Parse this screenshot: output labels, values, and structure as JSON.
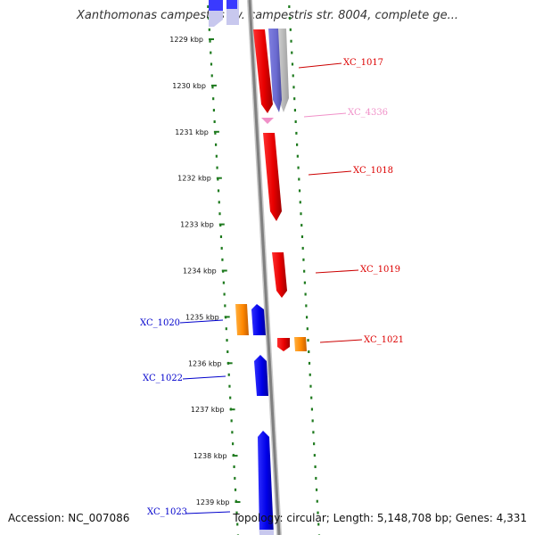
{
  "title": "Xanthomonas campestris pv. campestris str. 8004, complete ge...",
  "footer": {
    "accession": "Accession: NC_007086",
    "summary": "Topology: circular; Length: 5,148,708 bp; Genes: 4,331"
  },
  "colors": {
    "gene_red": "#ee0000",
    "gene_blue": "#0000ee",
    "gene_orange": "#ff8c00",
    "gene_pink": "#f090c8",
    "dots": "#1e7a1e",
    "backbone": "#888888"
  },
  "scale": {
    "unit": "kbp",
    "ticks": [
      {
        "kbp": 1229,
        "label": "1229 kbp"
      },
      {
        "kbp": 1230,
        "label": "1230 kbp"
      },
      {
        "kbp": 1231,
        "label": "1231 kbp"
      },
      {
        "kbp": 1232,
        "label": "1232 kbp"
      },
      {
        "kbp": 1233,
        "label": "1233 kbp"
      },
      {
        "kbp": 1234,
        "label": "1234 kbp"
      },
      {
        "kbp": 1235,
        "label": "1235 kbp"
      },
      {
        "kbp": 1236,
        "label": "1236 kbp"
      },
      {
        "kbp": 1237,
        "label": "1237 kbp"
      },
      {
        "kbp": 1238,
        "label": "1238 kbp"
      },
      {
        "kbp": 1239,
        "label": "1239 kbp"
      }
    ]
  },
  "gene_labels": [
    {
      "id": "XC_1017",
      "text": "XC_1017",
      "color": "#dd0000"
    },
    {
      "id": "XC_4336",
      "text": "XC_4336",
      "color": "#f090c8"
    },
    {
      "id": "XC_1018",
      "text": "XC_1018",
      "color": "#dd0000"
    },
    {
      "id": "XC_1019",
      "text": "XC_1019",
      "color": "#dd0000"
    },
    {
      "id": "XC_1020",
      "text": "XC_1020",
      "color": "#0000cc"
    },
    {
      "id": "XC_1021",
      "text": "XC_1021",
      "color": "#dd0000"
    },
    {
      "id": "XC_1022",
      "text": "XC_1022",
      "color": "#0000cc"
    },
    {
      "id": "XC_1023",
      "text": "XC_1023",
      "color": "#0000cc"
    }
  ]
}
